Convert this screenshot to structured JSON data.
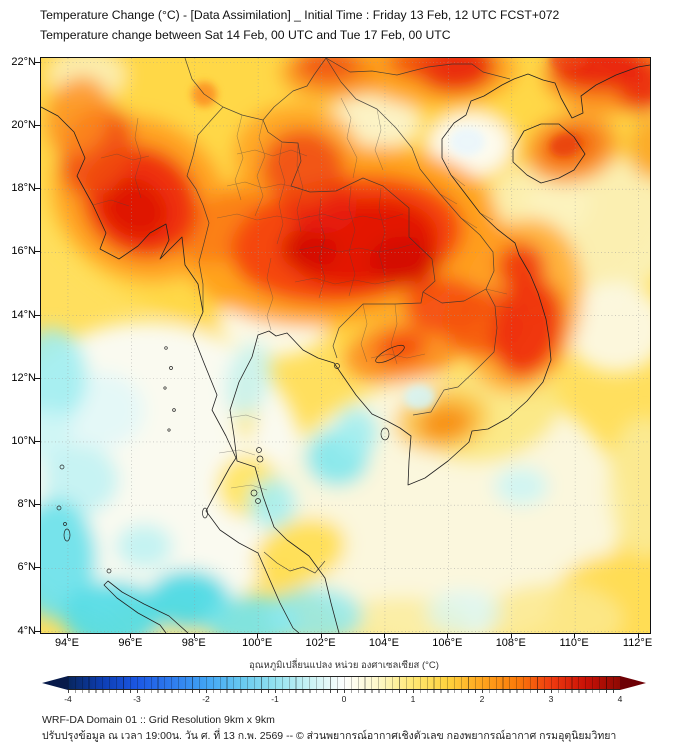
{
  "header": {
    "title_line1": "Temperature Change (°C) - [Data Assimilation] _ Initial Time : Friday 13 Feb, 12 UTC FCST+072",
    "title_line2": "Temperature change between Sat 14 Feb, 00 UTC and Tue 17 Feb, 00 UTC"
  },
  "map": {
    "lat_ticks": [
      "22°N",
      "20°N",
      "18°N",
      "16°N",
      "14°N",
      "12°N",
      "10°N",
      "8°N",
      "6°N",
      "4°N"
    ],
    "lon_ticks": [
      "94°E",
      "96°E",
      "98°E",
      "100°E",
      "102°E",
      "104°E",
      "106°E",
      "108°E",
      "110°E",
      "112°E"
    ],
    "field": {
      "base_color": "#FFDF5E",
      "blobs": [
        [
          103.0,
          18.5,
          10.0,
          5.5,
          0,
          "#FFD847",
          1
        ],
        [
          96.0,
          20.5,
          4.0,
          3.0,
          0,
          "#FFD847",
          1
        ],
        [
          96.5,
          9.0,
          5.0,
          4.8,
          0,
          "#FAFAF0",
          1
        ],
        [
          106.0,
          7.8,
          5.5,
          4.2,
          0,
          "#FBF7DD",
          1
        ],
        [
          110.8,
          16.8,
          2.5,
          2.2,
          0,
          "#FBF2BC",
          0.9
        ],
        [
          111.3,
          13.6,
          1.6,
          1.4,
          0,
          "#FCFAEA",
          0.9
        ],
        [
          100.5,
          13.8,
          1.7,
          1.1,
          0,
          "#FCFBEE",
          0.95
        ],
        [
          106.7,
          19.4,
          1.3,
          1.0,
          0,
          "#FDFDF8",
          0.95
        ],
        [
          106.6,
          19.5,
          0.55,
          0.45,
          0,
          "#EAF6FC",
          0.9
        ],
        [
          103.6,
          20.1,
          1.5,
          0.85,
          0,
          "#FCF8DC",
          0.85
        ],
        [
          94.6,
          21.6,
          1.2,
          0.8,
          0,
          "#FBF4C8",
          0.8
        ],
        [
          108.9,
          17.6,
          1.6,
          1.2,
          0,
          "#FBF3C0",
          0.85
        ],
        [
          96.5,
          4.6,
          1.0,
          0.6,
          0,
          "#FBF3CC",
          0.9
        ],
        [
          99.7,
          8.6,
          1.0,
          1.0,
          0,
          "#FFE35C",
          0.9
        ],
        [
          101.3,
          6.5,
          1.5,
          1.0,
          -20,
          "#FFDE52",
          0.95
        ],
        [
          99.6,
          11.3,
          0.45,
          1.3,
          0,
          "#FBE88A",
          0.8
        ],
        [
          96.9,
          4.2,
          1.7,
          0.75,
          0,
          "#FFE76E",
          0.9
        ],
        [
          111.6,
          4.8,
          2.4,
          1.7,
          0,
          "#FFDC55",
          0.95
        ],
        [
          109.3,
          4.4,
          2.2,
          1.1,
          0,
          "#FCE98E",
          0.85
        ],
        [
          104.6,
          4.2,
          2.2,
          0.9,
          0,
          "#FAEC9C",
          0.85
        ],
        [
          107.3,
          10.9,
          2.3,
          1.5,
          -15,
          "#FBE77E",
          0.9
        ],
        [
          112.2,
          8.6,
          1.2,
          2.2,
          0,
          "#FAEC9C",
          0.8
        ],
        [
          95.1,
          11.0,
          1.3,
          1.2,
          0,
          "#DFF8F9",
          0.8
        ],
        [
          93.5,
          12.1,
          1.1,
          1.5,
          0,
          "#9FEDF1",
          0.9
        ],
        [
          93.4,
          10.2,
          0.8,
          0.9,
          0,
          "#C9F4F6",
          0.85
        ],
        [
          94.4,
          8.8,
          1.2,
          1.1,
          0,
          "#BDF1F3",
          0.85
        ],
        [
          93.6,
          6.3,
          1.3,
          1.9,
          0,
          "#6FE2EA",
          0.95
        ],
        [
          95.4,
          4.5,
          1.6,
          1.1,
          0,
          "#55DCE6",
          0.95
        ],
        [
          97.8,
          5.0,
          1.3,
          0.95,
          0,
          "#4ED9E4",
          0.95
        ],
        [
          99.8,
          4.3,
          1.5,
          0.85,
          0,
          "#73E3EB",
          0.9
        ],
        [
          101.8,
          4.5,
          1.5,
          0.9,
          0,
          "#8FE9EE",
          0.85
        ],
        [
          100.45,
          8.05,
          0.75,
          0.8,
          0,
          "#A5EEF1",
          0.9
        ],
        [
          102.5,
          9.5,
          1.0,
          0.9,
          0,
          "#7FE6EC",
          0.9
        ],
        [
          103.1,
          10.3,
          0.7,
          0.8,
          0,
          "#9FEDF1",
          0.85
        ],
        [
          99.7,
          12.0,
          0.7,
          1.2,
          15,
          "#C5F3F5",
          0.85
        ],
        [
          105.1,
          11.4,
          0.5,
          0.4,
          0,
          "#D5F6F8",
          0.85
        ],
        [
          108.3,
          8.6,
          0.85,
          0.6,
          0,
          "#C9F4F6",
          0.85
        ],
        [
          96.4,
          6.7,
          0.9,
          0.7,
          0,
          "#AEEFF2",
          0.7
        ],
        [
          106.5,
          4.6,
          1.2,
          0.7,
          0,
          "#D5F6F8",
          0.7
        ],
        [
          102.6,
          16.5,
          5.0,
          2.8,
          -8,
          "#FFA01C",
          0.95
        ],
        [
          96.3,
          17.7,
          2.9,
          2.5,
          35,
          "#FF9C1E",
          0.9
        ],
        [
          101.2,
          19.1,
          2.0,
          1.6,
          0,
          "#FF9C1E",
          0.8
        ],
        [
          99.0,
          16.8,
          1.6,
          1.0,
          -25,
          "#FB7D12",
          0.9
        ],
        [
          108.3,
          14.3,
          1.9,
          2.8,
          12,
          "#FFA82A",
          0.85
        ],
        [
          104.6,
          12.9,
          1.9,
          1.0,
          -10,
          "#FC8C1E",
          0.9
        ],
        [
          105.6,
          21.8,
          2.6,
          1.2,
          0,
          "#FFA01C",
          0.85
        ],
        [
          111.2,
          21.6,
          2.2,
          1.2,
          0,
          "#FB7D12",
          0.8
        ],
        [
          109.9,
          19.3,
          1.5,
          1.1,
          -15,
          "#FB9426",
          0.9
        ],
        [
          105.8,
          10.7,
          1.5,
          1.0,
          -10,
          "#FBBE3C",
          0.8
        ],
        [
          107.1,
          16.1,
          1.2,
          1.0,
          0,
          "#FF9C1E",
          0.85
        ],
        [
          102.3,
          21.7,
          1.6,
          0.9,
          0,
          "#FB8D18",
          0.8
        ],
        [
          98.3,
          21.0,
          0.4,
          0.4,
          0,
          "#FC8C1E",
          0.85
        ],
        [
          112.4,
          19.3,
          0.7,
          1.0,
          0,
          "#FA9A20",
          0.7
        ],
        [
          102.8,
          16.4,
          3.7,
          2.0,
          -8,
          "#F4420D",
          0.95
        ],
        [
          103.3,
          16.3,
          2.4,
          1.4,
          -8,
          "#E21106",
          0.95
        ],
        [
          101.6,
          16.1,
          0.9,
          0.7,
          0,
          "#D00D03",
          0.75
        ],
        [
          104.6,
          15.7,
          1.1,
          0.8,
          0,
          "#D00D03",
          0.8
        ],
        [
          102.0,
          17.4,
          1.1,
          0.8,
          0,
          "#E8200A",
          0.85
        ],
        [
          101.4,
          18.7,
          1.3,
          1.2,
          0,
          "#F04A10",
          0.85
        ],
        [
          96.3,
          17.6,
          1.9,
          1.7,
          35,
          "#EE2B0C",
          0.95
        ],
        [
          96.1,
          17.4,
          1.1,
          0.9,
          35,
          "#DC1405",
          0.85
        ],
        [
          94.9,
          19.2,
          1.1,
          1.5,
          20,
          "#F04A10",
          0.85
        ],
        [
          94.3,
          20.3,
          1.0,
          1.3,
          20,
          "#FC8C1E",
          0.8
        ],
        [
          105.9,
          14.3,
          1.3,
          0.9,
          0,
          "#F4420D",
          0.85
        ],
        [
          107.1,
          13.8,
          1.3,
          1.1,
          0,
          "#F4530E",
          0.85
        ],
        [
          108.5,
          13.6,
          1.1,
          1.6,
          15,
          "#EE2B0C",
          0.9
        ],
        [
          108.3,
          15.5,
          0.75,
          0.8,
          0,
          "#EE2B0C",
          0.85
        ],
        [
          104.5,
          13.0,
          0.8,
          0.5,
          -10,
          "#F23F0E",
          0.8
        ],
        [
          106.2,
          21.9,
          1.3,
          0.85,
          0,
          "#E8200A",
          0.9
        ],
        [
          104.9,
          22.0,
          0.8,
          0.5,
          0,
          "#F0440E",
          0.8
        ],
        [
          102.2,
          21.9,
          1.0,
          0.55,
          0,
          "#F0500F",
          0.85
        ],
        [
          110.7,
          21.9,
          1.5,
          0.8,
          0,
          "#E8200A",
          0.9
        ],
        [
          112.1,
          21.3,
          0.8,
          0.9,
          0,
          "#E8200A",
          0.8
        ],
        [
          109.8,
          22.1,
          0.6,
          0.35,
          0,
          "#F0440E",
          0.7
        ],
        [
          109.85,
          19.35,
          0.95,
          0.65,
          -15,
          "#F26606",
          0.95
        ],
        [
          109.7,
          19.4,
          0.5,
          0.35,
          -15,
          "#E93E0A",
          0.85
        ],
        [
          105.9,
          10.6,
          0.85,
          0.55,
          -10,
          "#F78D13",
          0.9
        ]
      ]
    }
  },
  "colorbar": {
    "label": "อุณหภูมิเปลี่ยนแปลง หน่วย องศาเซลเซียส (°C)",
    "ticks": [
      "-4",
      "-3",
      "-2",
      "-1",
      "0",
      "1",
      "2",
      "3",
      "4"
    ],
    "stops": [
      "#08265E",
      "#0D3EB4",
      "#1B57E3",
      "#2E7BEE",
      "#41A4F4",
      "#66C8F0",
      "#93E2F0",
      "#C9F2F4",
      "#FDFEFD",
      "#FEF8C8",
      "#FFE873",
      "#FFD23E",
      "#FFA51E",
      "#FB7B0A",
      "#EF3B10",
      "#C91106",
      "#8F0A03"
    ],
    "left_arrow_color": "#071A4A",
    "right_arrow_color": "#6E0005"
  },
  "footer": {
    "line1": "WRF-DA Domain 01 :: Grid Resolution 9km x 9km",
    "line2": "ปรับปรุงข้อมูล ณ เวลา 19:00น. วัน ศ. ที่ 13 ก.พ. 2569 -- © ส่วนพยากรณ์อากาศเชิงตัวเลข กองพยากรณ์อากาศ กรมอุตุนิยมวิทยา"
  }
}
